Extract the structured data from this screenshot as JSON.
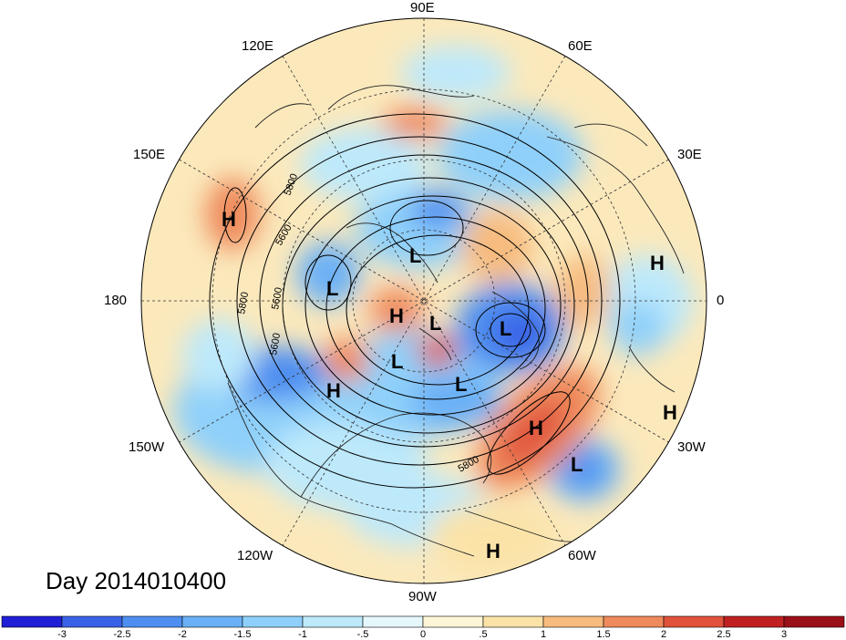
{
  "title": "Day 2014010400",
  "longitude_labels": [
    "90E",
    "60E",
    "30E",
    "0",
    "30W",
    "60W",
    "90W",
    "120W",
    "150W",
    "180",
    "150E",
    "120E"
  ],
  "contour_labels": [
    "5800",
    "5600",
    "5800",
    "5600",
    "5600",
    "5800"
  ],
  "pressure_centers": [
    {
      "type": "H",
      "label": "H"
    },
    {
      "type": "L",
      "label": "L"
    },
    {
      "type": "L",
      "label": "L"
    },
    {
      "type": "H",
      "label": "H"
    },
    {
      "type": "H",
      "label": "H"
    },
    {
      "type": "L",
      "label": "L"
    },
    {
      "type": "L",
      "label": "L"
    },
    {
      "type": "L",
      "label": "L"
    },
    {
      "type": "L",
      "label": "L"
    },
    {
      "type": "H",
      "label": "H"
    },
    {
      "type": "H",
      "label": "H"
    },
    {
      "type": "H",
      "label": "H"
    },
    {
      "type": "L",
      "label": "L"
    },
    {
      "type": "H",
      "label": "H"
    }
  ],
  "colorbar": {
    "labels": [
      "-3",
      "-2.5",
      "-2",
      "-1.5",
      "-1",
      "-.5",
      "0",
      ".5",
      "1",
      "1.5",
      "2",
      "2.5",
      "3"
    ],
    "colors": [
      "#1f1fd6",
      "#3a62e6",
      "#4e8ef0",
      "#6ab0f6",
      "#8fd0fa",
      "#bde9fb",
      "#e6f7fc",
      "#fdf6d6",
      "#fbe3a8",
      "#f7bb7e",
      "#ef8a5c",
      "#e0523c",
      "#c02020",
      "#9a1018"
    ]
  }
}
